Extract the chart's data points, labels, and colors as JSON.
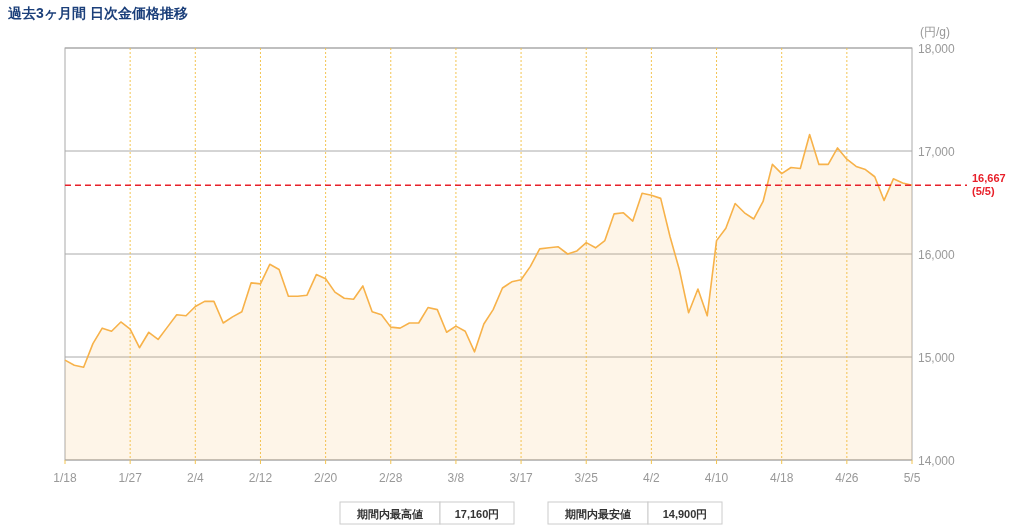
{
  "chart_data": {
    "type": "area",
    "title": "過去3ヶ月間 日次金価格推移",
    "ylabel": "(円/g)",
    "categories": [
      "1/18",
      null,
      null,
      null,
      null,
      null,
      null,
      "1/27",
      null,
      null,
      null,
      null,
      null,
      null,
      "2/4",
      null,
      null,
      null,
      null,
      null,
      null,
      "2/12",
      null,
      null,
      null,
      null,
      null,
      null,
      "2/20",
      null,
      null,
      null,
      null,
      null,
      null,
      "2/28",
      null,
      null,
      null,
      null,
      null,
      null,
      "3/8",
      null,
      null,
      null,
      null,
      null,
      null,
      "3/17",
      null,
      null,
      null,
      null,
      null,
      null,
      "3/25",
      null,
      null,
      null,
      null,
      null,
      null,
      "4/2",
      null,
      null,
      null,
      null,
      null,
      null,
      "4/10",
      null,
      null,
      null,
      null,
      null,
      null,
      "4/18",
      null,
      null,
      null,
      null,
      null,
      null,
      "4/26",
      null,
      null,
      null,
      null,
      null,
      null,
      "5/5"
    ],
    "series": [
      {
        "color": "#f7b24a",
        "values": [
          14970,
          14920,
          14900,
          15130,
          15280,
          15250,
          15340,
          15270,
          15090,
          15240,
          15170,
          15290,
          15410,
          15400,
          15490,
          15540,
          15540,
          15330,
          15390,
          15440,
          15720,
          15710,
          15900,
          15850,
          15590,
          15590,
          15600,
          15800,
          15760,
          15630,
          15570,
          15560,
          15690,
          15440,
          15410,
          15290,
          15280,
          15330,
          15330,
          15480,
          15460,
          15240,
          15300,
          15250,
          15050,
          15320,
          15460,
          15670,
          15730,
          15750,
          15880,
          16050,
          16060,
          16070,
          16000,
          16030,
          16110,
          16060,
          16130,
          16390,
          16400,
          16320,
          16590,
          16570,
          16540,
          16170,
          15850,
          15430,
          15660,
          15400,
          16130,
          16250,
          16490,
          16400,
          16340,
          16510,
          16870,
          16780,
          16840,
          16830,
          17160,
          16870,
          16870,
          17030,
          16920,
          16850,
          16820,
          16750,
          16520,
          16730,
          16690,
          16667
        ]
      }
    ],
    "ylim": [
      14000,
      18000
    ],
    "yticks": [
      {
        "value": 14000,
        "label": "14,000"
      },
      {
        "value": 15000,
        "label": "15,000"
      },
      {
        "value": 16000,
        "label": "16,000"
      },
      {
        "value": 17000,
        "label": "17,000"
      },
      {
        "value": 18000,
        "label": "18,000"
      }
    ],
    "grid": true,
    "ref_lines": [
      {
        "axis": "y",
        "value": 16667,
        "label": "16,667 (5/5)",
        "color": "#e8202a",
        "line_style": "dashed"
      }
    ],
    "annotations": [
      "期間内最高値",
      "17,160円",
      "期間内最安値",
      "14,900円"
    ]
  }
}
